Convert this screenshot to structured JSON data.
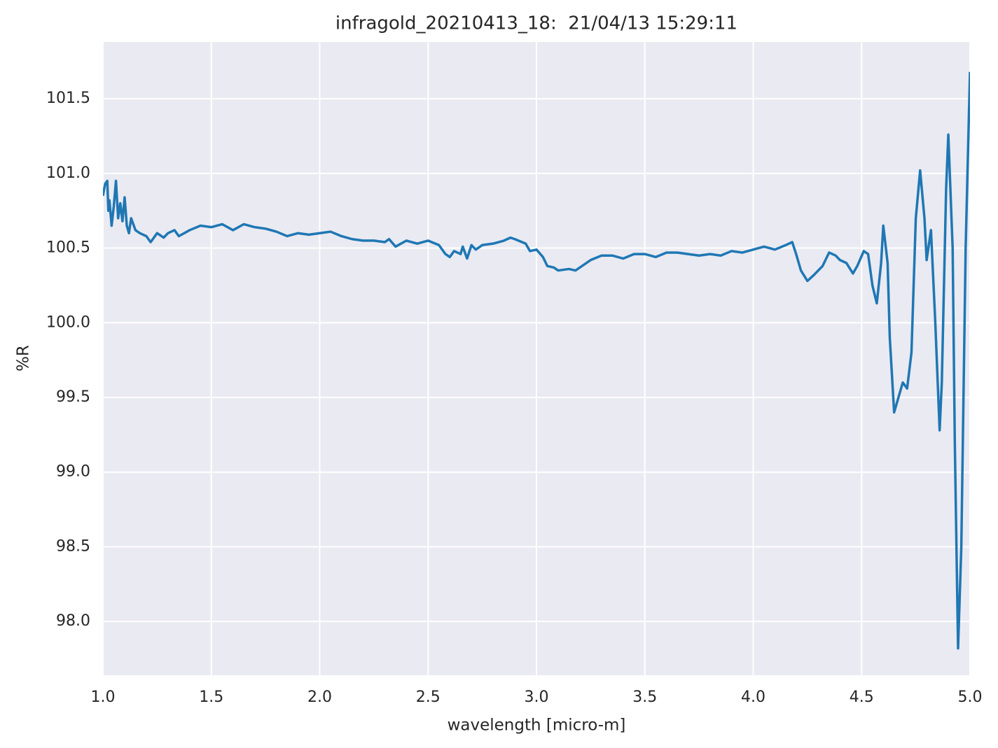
{
  "chart_data": {
    "type": "line",
    "title": "infragold_20210413_18:  21/04/13 15:29:11",
    "x_label": "wavelength [micro-m]",
    "y_label": "%R",
    "xlim": [
      1.0,
      5.0
    ],
    "ylim": [
      97.64,
      101.88
    ],
    "xticks": [
      {
        "value": 1,
        "label": "1.0"
      },
      1.5,
      {
        "value": 2,
        "label": "2.0"
      },
      2.5,
      {
        "value": 3,
        "label": "3.0"
      },
      3.5,
      {
        "value": 4,
        "label": "4.0"
      },
      4.5,
      {
        "value": 5,
        "label": "5.0"
      }
    ],
    "yticks": [
      {
        "value": 98,
        "label": "98.0"
      },
      98.5,
      {
        "value": 99,
        "label": "99.0"
      },
      99.5,
      {
        "value": 100,
        "label": "100.0"
      },
      100.5,
      {
        "value": 101,
        "label": "101.0"
      },
      101.5
    ],
    "grid": true,
    "series": [
      {
        "name": "%R",
        "color": "#1f77b4",
        "x": [
          1.0,
          1.01,
          1.02,
          1.025,
          1.03,
          1.04,
          1.05,
          1.06,
          1.07,
          1.08,
          1.09,
          1.1,
          1.11,
          1.12,
          1.13,
          1.15,
          1.17,
          1.2,
          1.22,
          1.25,
          1.28,
          1.3,
          1.33,
          1.35,
          1.4,
          1.45,
          1.5,
          1.55,
          1.6,
          1.65,
          1.7,
          1.75,
          1.8,
          1.85,
          1.9,
          1.95,
          2.0,
          2.05,
          2.1,
          2.15,
          2.2,
          2.25,
          2.3,
          2.32,
          2.35,
          2.4,
          2.45,
          2.5,
          2.55,
          2.58,
          2.6,
          2.62,
          2.65,
          2.66,
          2.68,
          2.7,
          2.72,
          2.75,
          2.8,
          2.85,
          2.88,
          2.9,
          2.95,
          2.97,
          3.0,
          3.03,
          3.05,
          3.08,
          3.1,
          3.15,
          3.18,
          3.22,
          3.25,
          3.3,
          3.35,
          3.4,
          3.45,
          3.5,
          3.55,
          3.6,
          3.65,
          3.7,
          3.75,
          3.8,
          3.85,
          3.9,
          3.95,
          4.0,
          4.05,
          4.1,
          4.15,
          4.18,
          4.2,
          4.22,
          4.25,
          4.28,
          4.32,
          4.35,
          4.38,
          4.4,
          4.43,
          4.46,
          4.48,
          4.51,
          4.53,
          4.55,
          4.57,
          4.59,
          4.6,
          4.62,
          4.63,
          4.65,
          4.67,
          4.69,
          4.71,
          4.73,
          4.75,
          4.77,
          4.79,
          4.8,
          4.82,
          4.84,
          4.86,
          4.87,
          4.89,
          4.9,
          4.92,
          4.93,
          4.945,
          4.96,
          4.98,
          5.0
        ],
        "values": [
          100.85,
          100.93,
          100.95,
          100.75,
          100.82,
          100.65,
          100.78,
          100.95,
          100.7,
          100.8,
          100.68,
          100.84,
          100.65,
          100.6,
          100.7,
          100.62,
          100.6,
          100.58,
          100.54,
          100.6,
          100.57,
          100.6,
          100.62,
          100.58,
          100.62,
          100.65,
          100.64,
          100.66,
          100.62,
          100.66,
          100.64,
          100.63,
          100.61,
          100.58,
          100.6,
          100.59,
          100.6,
          100.61,
          100.58,
          100.56,
          100.55,
          100.55,
          100.54,
          100.56,
          100.51,
          100.55,
          100.53,
          100.55,
          100.52,
          100.46,
          100.44,
          100.48,
          100.46,
          100.51,
          100.43,
          100.52,
          100.49,
          100.52,
          100.53,
          100.55,
          100.57,
          100.56,
          100.53,
          100.48,
          100.49,
          100.44,
          100.38,
          100.37,
          100.35,
          100.36,
          100.35,
          100.39,
          100.42,
          100.45,
          100.45,
          100.43,
          100.46,
          100.46,
          100.44,
          100.47,
          100.47,
          100.46,
          100.45,
          100.46,
          100.45,
          100.48,
          100.47,
          100.49,
          100.51,
          100.49,
          100.52,
          100.54,
          100.45,
          100.35,
          100.28,
          100.32,
          100.38,
          100.47,
          100.45,
          100.42,
          100.4,
          100.33,
          100.38,
          100.48,
          100.46,
          100.25,
          100.13,
          100.4,
          100.65,
          100.4,
          99.9,
          99.4,
          99.5,
          99.6,
          99.56,
          99.8,
          100.7,
          101.02,
          100.7,
          100.42,
          100.62,
          100.0,
          99.28,
          99.6,
          100.9,
          101.26,
          100.5,
          99.2,
          97.82,
          98.5,
          100.5,
          101.68
        ]
      }
    ]
  }
}
